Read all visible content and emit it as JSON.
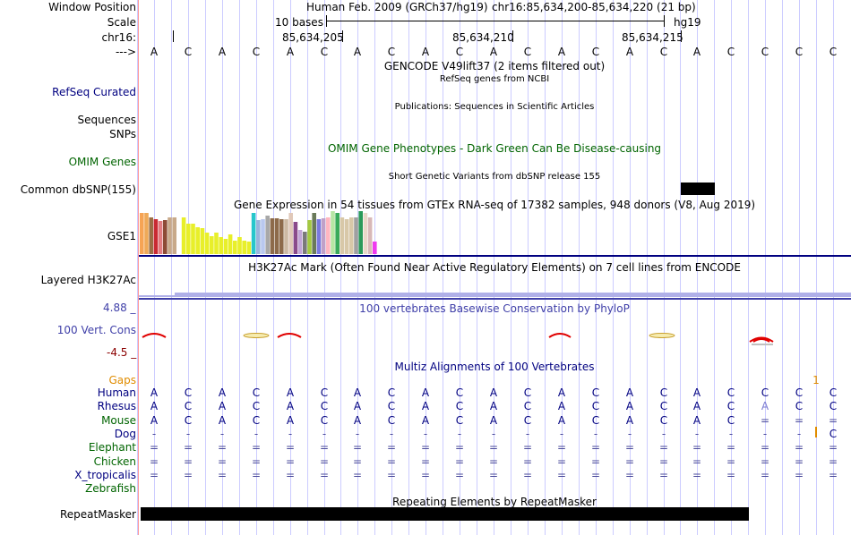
{
  "header": {
    "window_position_label": "Window Position",
    "scale_label": "Scale",
    "chrom_label": "chr16:",
    "strand_label": "--->",
    "assembly": "Human Feb. 2009 (GRCh37/hg19)",
    "position": "chr16:85,634,200-85,634,220 (21 bp)",
    "scale_text": "10 bases",
    "scale_db": "hg19",
    "ticks": [
      "85,634,205",
      "85,634,210",
      "85,634,215"
    ]
  },
  "base_sequence": [
    "A",
    "C",
    "A",
    "C",
    "A",
    "C",
    "A",
    "C",
    "A",
    "C",
    "A",
    "C",
    "A",
    "C",
    "A",
    "C",
    "A",
    "C",
    "C",
    "C",
    "C"
  ],
  "tracks": {
    "gencode": {
      "title": "GENCODE V49lift37 (2 items filtered out)"
    },
    "refseq": {
      "label": "RefSeq Curated",
      "title": "RefSeq genes from NCBI"
    },
    "pubs": {
      "label": "Sequences",
      "title": "Publications: Sequences in Scientific Articles"
    },
    "snps": {
      "label": "SNPs"
    },
    "omim": {
      "label": "OMIM Genes",
      "title": "OMIM Gene Phenotypes - Dark Green Can Be Disease-causing"
    },
    "dbsnp": {
      "label": "Common dbSNP(155)",
      "title": "Short Genetic Variants from dbSNP release 155"
    },
    "gtex": {
      "label": "GSE1",
      "title": "Gene Expression in 54 tissues from GTEx RNA-seq of 17382 samples, 948 donors (V8, Aug 2019)"
    },
    "h3k27ac": {
      "label": "Layered H3K27Ac",
      "title": "H3K27Ac Mark (Often Found Near Active Regulatory Elements) on 7 cell lines from ENCODE"
    },
    "cons": {
      "label": "100 Vert. Cons",
      "max": "4.88 _",
      "min": "-4.5 _",
      "title": "100 vertebrates Basewise Conservation by PhyloP"
    },
    "multiz": {
      "title": "Multiz Alignments of 100 Vertebrates",
      "gaps_label": "Gaps",
      "gap_mark": "1"
    },
    "repeatmasker": {
      "label": "RepeatMasker",
      "title": "Repeating Elements by RepeatMasker"
    }
  },
  "species": [
    {
      "name": "Human",
      "row": [
        "A",
        "C",
        "A",
        "C",
        "A",
        "C",
        "A",
        "C",
        "A",
        "C",
        "A",
        "C",
        "A",
        "C",
        "A",
        "C",
        "A",
        "C",
        "C",
        "C",
        "C"
      ]
    },
    {
      "name": "Rhesus",
      "row": [
        "A",
        "C",
        "A",
        "C",
        "A",
        "C",
        "A",
        "C",
        "A",
        "C",
        "A",
        "C",
        "A",
        "C",
        "A",
        "C",
        "A",
        "C",
        "A",
        "C",
        "C"
      ]
    },
    {
      "name": "Mouse",
      "row": [
        "A",
        "C",
        "A",
        "C",
        "A",
        "C",
        "A",
        "C",
        "A",
        "C",
        "A",
        "C",
        "A",
        "C",
        "A",
        "C",
        "A",
        "C",
        "=",
        "=",
        "="
      ]
    },
    {
      "name": "Dog",
      "row": [
        "-",
        "-",
        "-",
        "-",
        "-",
        "-",
        "-",
        "-",
        "-",
        "-",
        "-",
        "-",
        "-",
        "-",
        "-",
        "-",
        "-",
        "-",
        "-",
        "-",
        "C"
      ]
    },
    {
      "name": "Elephant",
      "row": [
        "=",
        "=",
        "=",
        "=",
        "=",
        "=",
        "=",
        "=",
        "=",
        "=",
        "=",
        "=",
        "=",
        "=",
        "=",
        "=",
        "=",
        "=",
        "=",
        "=",
        "="
      ]
    },
    {
      "name": "Chicken",
      "row": [
        "=",
        "=",
        "=",
        "=",
        "=",
        "=",
        "=",
        "=",
        "=",
        "=",
        "=",
        "=",
        "=",
        "=",
        "=",
        "=",
        "=",
        "=",
        "=",
        "=",
        "="
      ]
    },
    {
      "name": "X_tropicalis",
      "row": [
        "=",
        "=",
        "=",
        "=",
        "=",
        "=",
        "=",
        "=",
        "=",
        "=",
        "=",
        "=",
        "=",
        "=",
        "=",
        "=",
        "=",
        "=",
        "=",
        "=",
        "="
      ]
    },
    {
      "name": "Zebrafish",
      "row": []
    }
  ],
  "gtex_bar_colors": [
    "#f6a454",
    "#eea958",
    "#9b6d45",
    "#c92a33",
    "#e27c80",
    "#8d4b35",
    "#c8a98a",
    "#c8a98a",
    "#ffffff",
    "#e8ef2a",
    "#e8ef2a",
    "#e8ef2a",
    "#e8ef2a",
    "#e8ef2a",
    "#e8ef2a",
    "#e8ef2a",
    "#e8ef2a",
    "#e8ef2a",
    "#e8ef2a",
    "#e8ef2a",
    "#e8ef2a",
    "#e8ef2a",
    "#e8ef2a",
    "#e8ef2a",
    "#27c6cc",
    "#9ab4dd",
    "#b9c8ee",
    "#a8a8a8",
    "#8d6a4a",
    "#8d6a4a",
    "#8d6a4a",
    "#cdb9a3",
    "#e0c8b9",
    "#8a4a8a",
    "#c2a5d6",
    "#7a7a7a",
    "#a4c940",
    "#6a7a5a",
    "#7a7ae0",
    "#c0a0c8",
    "#ffb6c1",
    "#b7e6a4",
    "#3aaa5a",
    "#d8c8a8",
    "#d8c8a8",
    "#d8c8a8",
    "#a0a0a0",
    "#2a9a5a",
    "#e8d8c8",
    "#d8b8b8",
    "#ef3aef"
  ],
  "gtex_values": [
    0.95,
    0.95,
    0.86,
    0.82,
    0.78,
    0.8,
    0.86,
    0.86,
    0.82,
    0.86,
    0.7,
    0.7,
    0.62,
    0.6,
    0.5,
    0.42,
    0.5,
    0.4,
    0.36,
    0.45,
    0.32,
    0.4,
    0.32,
    0.3,
    0.96,
    0.8,
    0.82,
    0.9,
    0.84,
    0.84,
    0.82,
    0.82,
    0.95,
    0.76,
    0.56,
    0.52,
    0.8,
    0.96,
    0.82,
    0.84,
    0.86,
    1.0,
    0.96,
    0.86,
    0.82,
    0.86,
    0.86,
    1.0,
    0.96,
    0.86,
    0.3
  ],
  "colors": {
    "navy": "#000080",
    "dark_green": "#006400",
    "orange": "#e08c00",
    "cons_blue": "#3f3fa8",
    "grid_line": "#ccccff",
    "red_axis": "#ff9999",
    "black": "#000000"
  }
}
